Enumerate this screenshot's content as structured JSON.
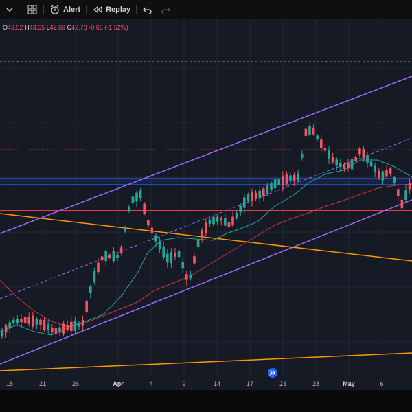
{
  "toolbar": {
    "alert_label": "Alert",
    "replay_label": "Replay"
  },
  "legend": {
    "open_key": "O",
    "open": "43.52",
    "high_key": "H",
    "high": "43.55",
    "low_key": "L",
    "low": "42.69",
    "close_key": "C",
    "close": "42.78",
    "change": "-0.66 (-1.52%)"
  },
  "x_axis": {
    "labels": [
      "18",
      "21",
      "26",
      "Apr",
      "4",
      "9",
      "14",
      "17",
      "23",
      "28",
      "May",
      "6"
    ]
  },
  "colors": {
    "up": "#26a69a",
    "down": "#f7525f",
    "channel": "#9c6bff",
    "trend_orange": "#ff9800",
    "horizontal_red": "#f23645",
    "horizontal_blue": "#2962ff",
    "ma_green": "#26a69a",
    "ma_red": "#f23645",
    "background": "#161a25"
  },
  "icons": [
    "grid-icon",
    "alert-clock-icon",
    "replay-icon",
    "undo-icon",
    "redo-icon",
    "jump-to-realtime-icon"
  ]
}
